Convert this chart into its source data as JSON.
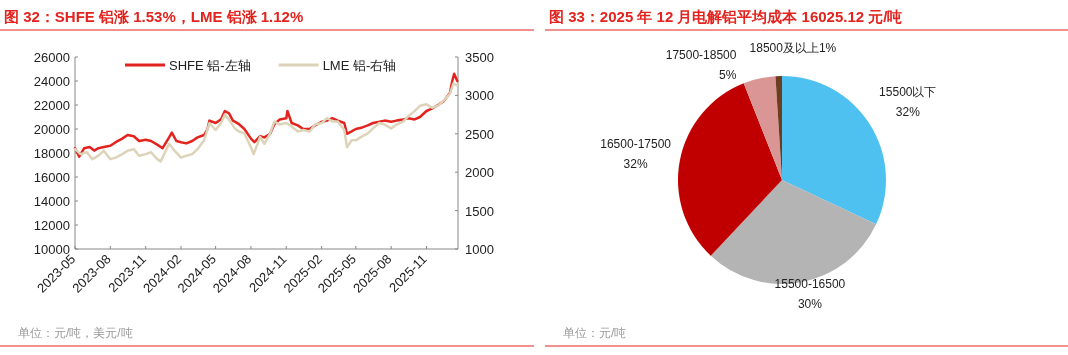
{
  "chart_data": [
    {
      "type": "line",
      "title": "图 32：SHFE 铝涨 1.53%，LME 铝涨 1.12%",
      "annotations": [
        "单位：元/吨，美元/吨"
      ],
      "legend": "top",
      "grid": false,
      "xlim": [
        "2023-05-01",
        "2026-01-22"
      ],
      "xticks": [
        "2023-05",
        "2023-08",
        "2023-11",
        "2024-02",
        "2024-05",
        "2024-08",
        "2024-11",
        "2025-02",
        "2025-05",
        "2025-08",
        "2025-11"
      ],
      "ylim": [
        10000,
        26000
      ],
      "yticks": [
        10000,
        12000,
        14000,
        16000,
        18000,
        20000,
        22000,
        24000,
        26000
      ],
      "y2lim": [
        1000,
        3500
      ],
      "y2ticks": [
        1000,
        1500,
        2000,
        2500,
        3000,
        3500
      ],
      "series": [
        {
          "name": "SHFE 铝-左轴",
          "color": "#e3231e",
          "x": [
            "2023-05-01",
            "2023-05-12",
            "2023-05-25",
            "2023-06-08",
            "2023-06-20",
            "2023-07-01",
            "2023-07-15",
            "2023-08-01",
            "2023-08-15",
            "2023-09-01",
            "2023-09-15",
            "2023-10-01",
            "2023-10-15",
            "2023-11-01",
            "2023-11-15",
            "2023-12-01",
            "2023-12-15",
            "2024-01-01",
            "2024-01-08",
            "2024-01-20",
            "2024-02-01",
            "2024-02-15",
            "2024-03-01",
            "2024-03-15",
            "2024-04-01",
            "2024-04-10",
            "2024-04-15",
            "2024-05-01",
            "2024-05-15",
            "2024-05-25",
            "2024-06-05",
            "2024-06-15",
            "2024-07-01",
            "2024-07-15",
            "2024-08-01",
            "2024-08-10",
            "2024-08-25",
            "2024-09-05",
            "2024-09-20",
            "2024-10-01",
            "2024-10-15",
            "2024-11-01",
            "2024-11-04",
            "2024-11-15",
            "2024-12-01",
            "2024-12-15",
            "2025-01-01",
            "2025-01-15",
            "2025-02-01",
            "2025-02-15",
            "2025-03-01",
            "2025-03-15",
            "2025-04-01",
            "2025-04-08",
            "2025-04-20",
            "2025-05-01",
            "2025-05-15",
            "2025-06-01",
            "2025-06-15",
            "2025-07-01",
            "2025-07-15",
            "2025-08-01",
            "2025-08-15",
            "2025-09-01",
            "2025-09-15",
            "2025-10-01",
            "2025-10-15",
            "2025-11-01",
            "2025-11-15",
            "2025-12-01",
            "2025-12-15",
            "2026-01-01",
            "2026-01-07",
            "2026-01-12",
            "2026-01-20"
          ],
          "values": [
            18400,
            17700,
            18400,
            18500,
            18200,
            18400,
            18500,
            18600,
            18900,
            19200,
            19500,
            19400,
            19000,
            19100,
            19000,
            18700,
            18400,
            19300,
            19700,
            19000,
            18900,
            18800,
            19000,
            19300,
            19500,
            20000,
            20700,
            20500,
            20800,
            21500,
            21300,
            20700,
            20400,
            20000,
            19200,
            18900,
            19400,
            19300,
            19600,
            20400,
            20800,
            20900,
            21500,
            20500,
            20300,
            20000,
            20000,
            20300,
            20600,
            20700,
            20900,
            20700,
            20500,
            19600,
            19800,
            20000,
            20100,
            20300,
            20500,
            20600,
            20700,
            20600,
            20700,
            20800,
            20900,
            20800,
            21000,
            21500,
            21700,
            22000,
            22300,
            23000,
            24000,
            24600,
            24000
          ]
        },
        {
          "name": "LME 铝-右轴",
          "color": "#ddd3b8",
          "axis": "y2",
          "x": [
            "2023-05-01",
            "2023-05-15",
            "2023-06-01",
            "2023-06-15",
            "2023-07-01",
            "2023-07-15",
            "2023-08-01",
            "2023-08-15",
            "2023-09-01",
            "2023-09-15",
            "2023-10-01",
            "2023-10-15",
            "2023-11-01",
            "2023-11-15",
            "2023-12-01",
            "2023-12-10",
            "2024-01-01",
            "2024-01-15",
            "2024-02-01",
            "2024-02-15",
            "2024-03-01",
            "2024-03-15",
            "2024-04-01",
            "2024-04-15",
            "2024-05-01",
            "2024-05-15",
            "2024-05-25",
            "2024-06-05",
            "2024-06-20",
            "2024-07-01",
            "2024-07-15",
            "2024-08-01",
            "2024-08-08",
            "2024-08-25",
            "2024-09-05",
            "2024-09-20",
            "2024-10-01",
            "2024-10-15",
            "2024-11-01",
            "2024-11-15",
            "2024-12-01",
            "2024-12-15",
            "2025-01-01",
            "2025-01-15",
            "2025-02-01",
            "2025-02-15",
            "2025-03-01",
            "2025-03-15",
            "2025-04-01",
            "2025-04-08",
            "2025-04-20",
            "2025-05-01",
            "2025-05-15",
            "2025-06-01",
            "2025-06-15",
            "2025-07-01",
            "2025-07-15",
            "2025-08-01",
            "2025-08-15",
            "2025-09-01",
            "2025-09-15",
            "2025-10-01",
            "2025-10-15",
            "2025-11-01",
            "2025-11-15",
            "2025-12-01",
            "2025-12-15",
            "2026-01-01",
            "2026-01-10",
            "2026-01-20"
          ],
          "values": [
            2300,
            2235,
            2260,
            2170,
            2215,
            2280,
            2170,
            2190,
            2235,
            2280,
            2300,
            2215,
            2235,
            2260,
            2170,
            2140,
            2370,
            2280,
            2190,
            2215,
            2235,
            2300,
            2415,
            2640,
            2550,
            2640,
            2750,
            2685,
            2570,
            2530,
            2505,
            2325,
            2235,
            2460,
            2370,
            2505,
            2660,
            2620,
            2640,
            2595,
            2530,
            2550,
            2530,
            2620,
            2640,
            2705,
            2660,
            2660,
            2550,
            2325,
            2415,
            2415,
            2460,
            2505,
            2570,
            2640,
            2620,
            2570,
            2620,
            2660,
            2730,
            2795,
            2865,
            2885,
            2840,
            2865,
            2930,
            3020,
            3155,
            3130
          ]
        }
      ]
    },
    {
      "type": "pie",
      "title": "图 33：2025 年 12 月电解铝平均成本 16025.12 元/吨",
      "annotations": [
        "单位：元/吨"
      ],
      "categories": [
        "15500以下",
        "15500-16500",
        "16500-17500",
        "17500-18500",
        "18500及以上"
      ],
      "values": [
        32,
        30,
        32,
        5,
        1
      ],
      "value_labels": [
        "32%",
        "30%",
        "32%",
        "5%",
        "1%"
      ],
      "colors": [
        "#4fc1f0",
        "#b4b4b4",
        "#c00000",
        "#d99694",
        "#6b3e1f"
      ]
    }
  ]
}
